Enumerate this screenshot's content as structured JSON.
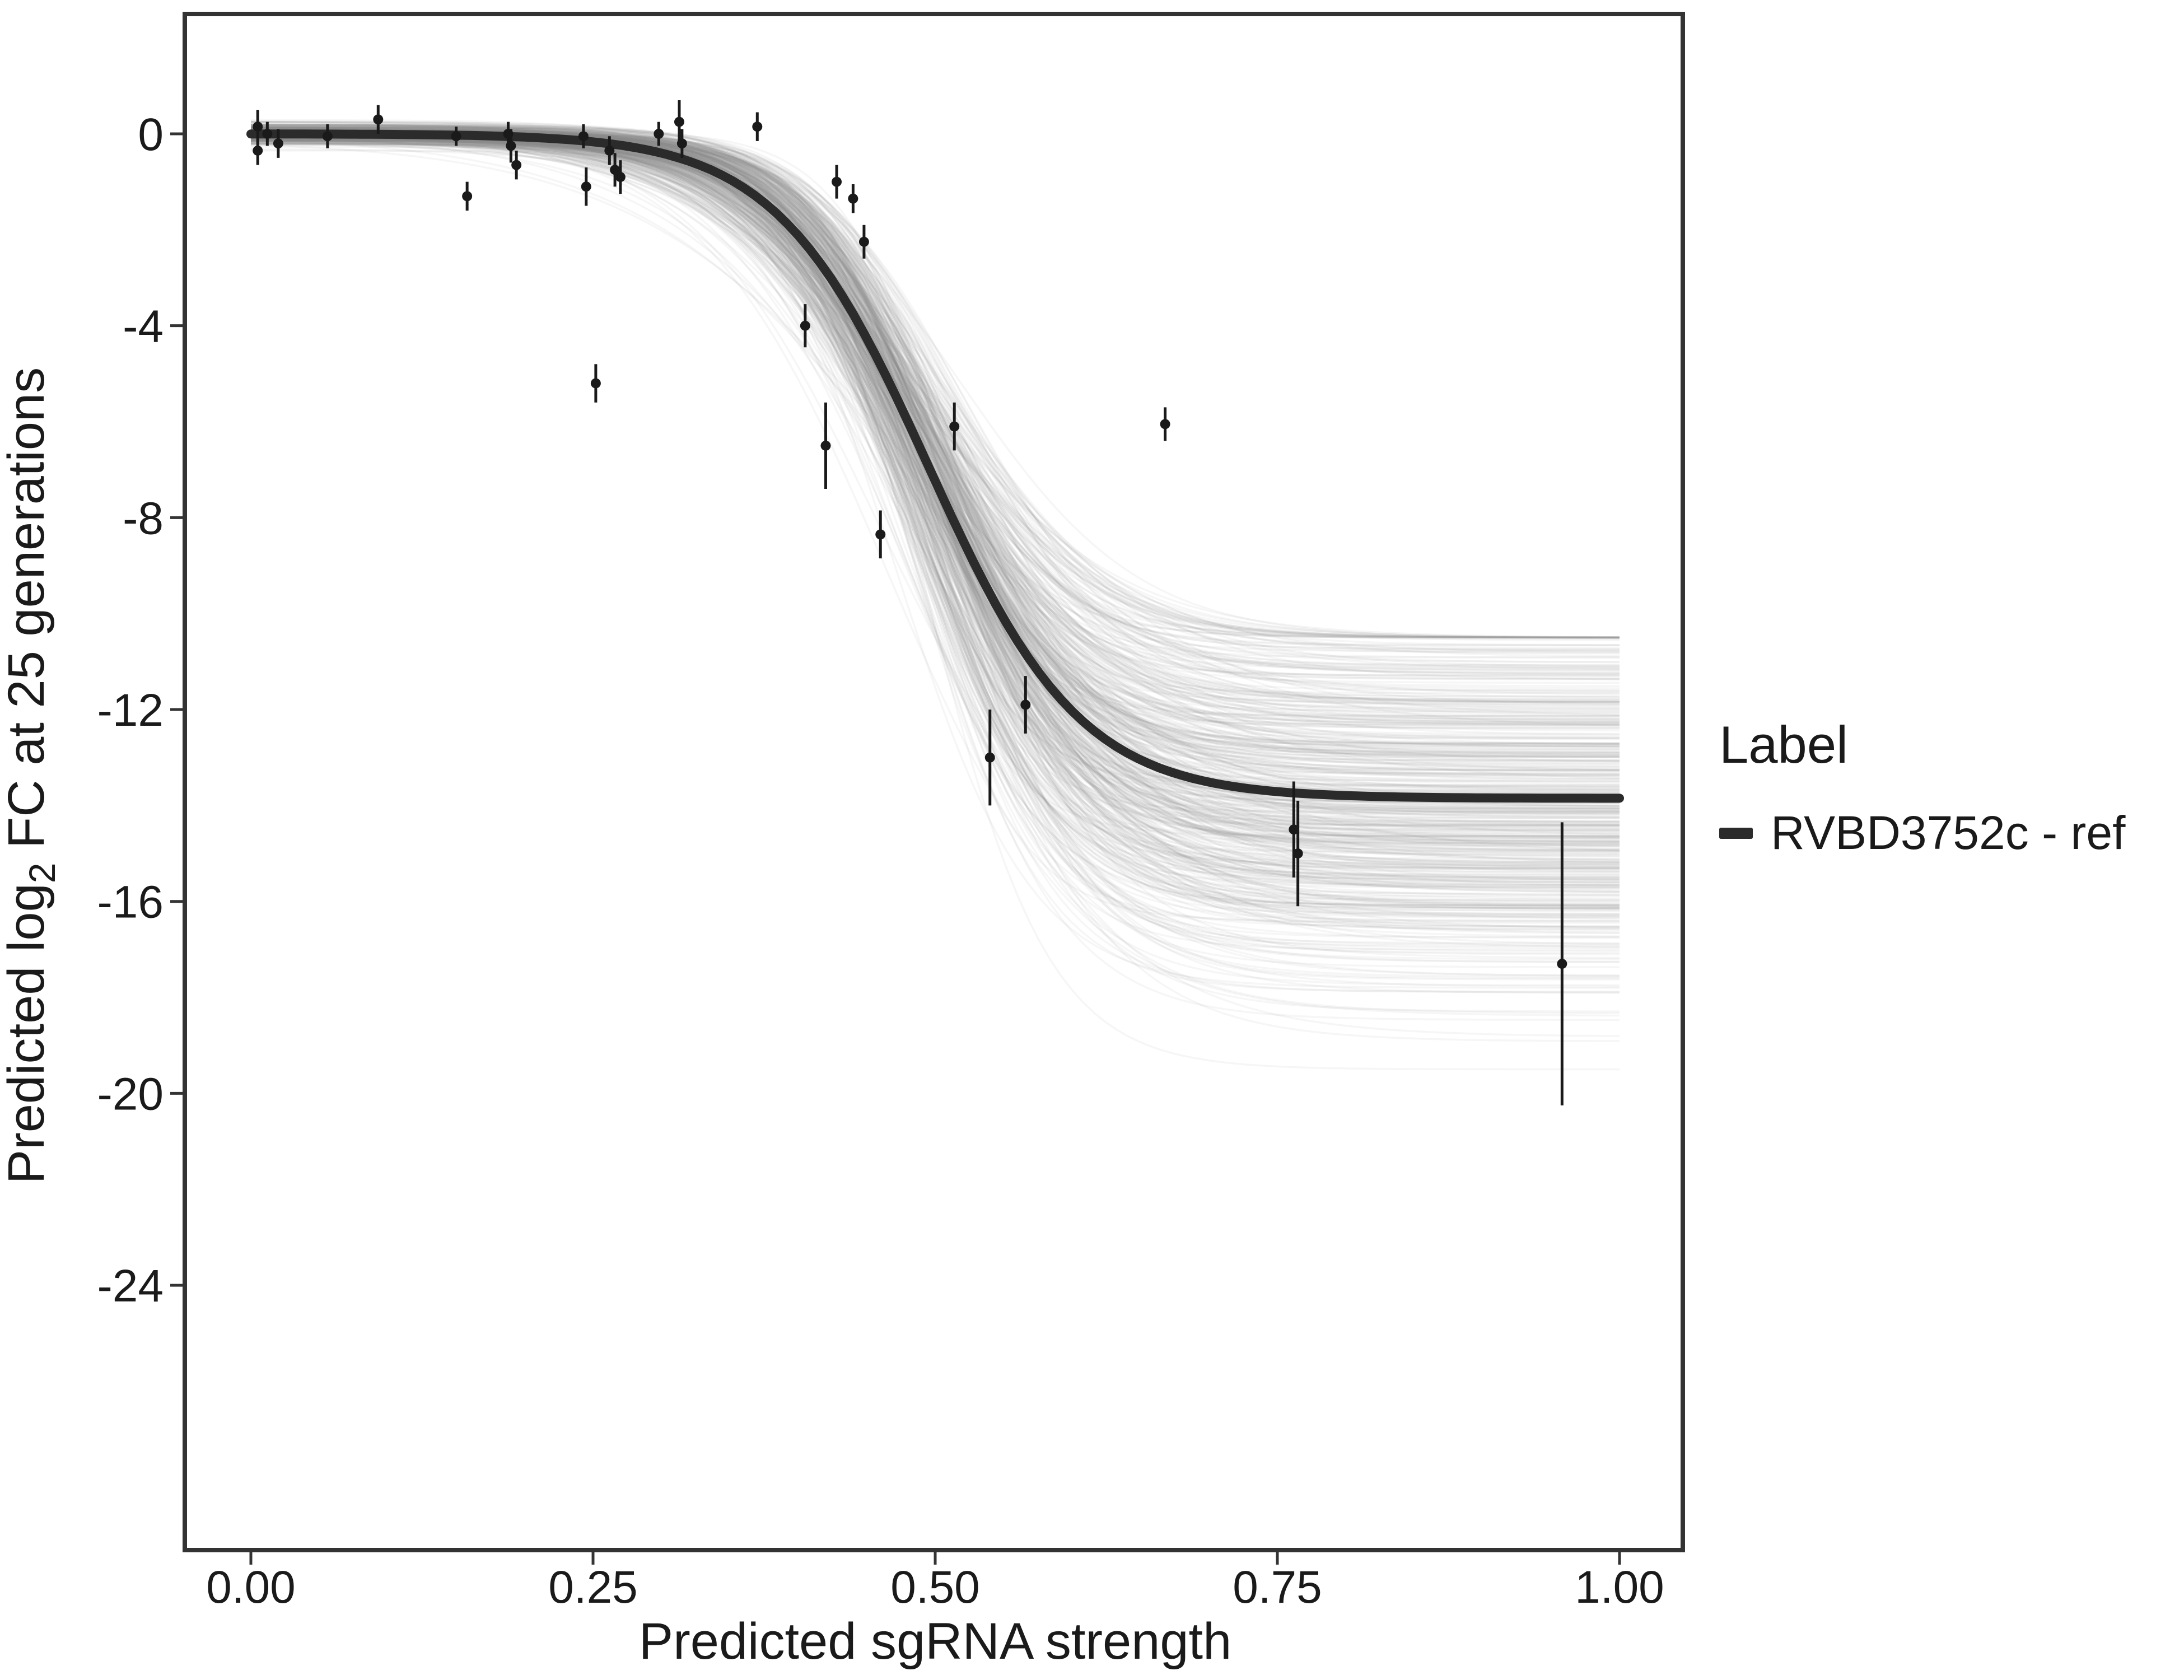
{
  "chart_data": {
    "type": "line",
    "title": "",
    "xlabel": "Predicted sgRNA strength",
    "ylabel": {
      "pre": "Predicted  log",
      "sub": "2",
      "post": " FC at 25 generations"
    },
    "xlim": [
      -0.048,
      1.046
    ],
    "ylim": [
      -29.5,
      2.5
    ],
    "grid": false,
    "xticks": [
      {
        "v": 0.0,
        "label": "0.00"
      },
      {
        "v": 0.25,
        "label": "0.25"
      },
      {
        "v": 0.5,
        "label": "0.50"
      },
      {
        "v": 0.75,
        "label": "0.75"
      },
      {
        "v": 1.0,
        "label": "1.00"
      }
    ],
    "yticks": [
      {
        "v": 0,
        "label": "0"
      },
      {
        "v": -4,
        "label": "-4"
      },
      {
        "v": -8,
        "label": "-8"
      },
      {
        "v": -12,
        "label": "-12"
      },
      {
        "v": -16,
        "label": "-16"
      },
      {
        "v": -20,
        "label": "-20"
      },
      {
        "v": -24,
        "label": "-24"
      }
    ],
    "legend": {
      "title": "Label",
      "position": "right",
      "entries": [
        {
          "label": "RVBD3752c - ref",
          "color": "#2b2b2b"
        }
      ]
    },
    "ref_curve": {
      "name": "RVBD3752c - ref",
      "model": "logistic",
      "top": 0,
      "bottom": -13.85,
      "x0": 0.495,
      "k": 18,
      "color": "#2b2b2b",
      "width": 16
    },
    "ensemble": {
      "description": "posterior sample sigmoid curves",
      "count": 500,
      "bottom_mean": -13.85,
      "bottom_sd": 2.0,
      "bottom_min": -19.5,
      "bottom_max": -10.5,
      "x0_mean": 0.495,
      "x0_sd": 0.013,
      "k_mean": 18,
      "k_sd": 3,
      "color": "#8c8c8c",
      "opacity": 0.08
    },
    "points": [
      {
        "x": 0.005,
        "y": 0.15,
        "e": 0.35
      },
      {
        "x": 0.005,
        "y": -0.35,
        "e": 0.3
      },
      {
        "x": 0.012,
        "y": 0.0,
        "e": 0.25
      },
      {
        "x": 0.02,
        "y": -0.2,
        "e": 0.3
      },
      {
        "x": 0.056,
        "y": -0.05,
        "e": 0.25
      },
      {
        "x": 0.093,
        "y": 0.3,
        "e": 0.3
      },
      {
        "x": 0.15,
        "y": -0.05,
        "e": 0.2
      },
      {
        "x": 0.158,
        "y": -1.3,
        "e": 0.3
      },
      {
        "x": 0.188,
        "y": 0.0,
        "e": 0.25
      },
      {
        "x": 0.19,
        "y": -0.25,
        "e": 0.35
      },
      {
        "x": 0.194,
        "y": -0.65,
        "e": 0.3
      },
      {
        "x": 0.243,
        "y": -0.05,
        "e": 0.25
      },
      {
        "x": 0.245,
        "y": -1.1,
        "e": 0.4
      },
      {
        "x": 0.252,
        "y": -5.2,
        "e": 0.4
      },
      {
        "x": 0.262,
        "y": -0.35,
        "e": 0.3
      },
      {
        "x": 0.266,
        "y": -0.75,
        "e": 0.35
      },
      {
        "x": 0.27,
        "y": -0.9,
        "e": 0.35
      },
      {
        "x": 0.298,
        "y": 0.0,
        "e": 0.25
      },
      {
        "x": 0.313,
        "y": 0.25,
        "e": 0.45
      },
      {
        "x": 0.315,
        "y": -0.2,
        "e": 0.3
      },
      {
        "x": 0.37,
        "y": 0.15,
        "e": 0.3
      },
      {
        "x": 0.405,
        "y": -4.0,
        "e": 0.45
      },
      {
        "x": 0.42,
        "y": -6.5,
        "e": 0.9
      },
      {
        "x": 0.428,
        "y": -1.0,
        "e": 0.35
      },
      {
        "x": 0.44,
        "y": -1.35,
        "e": 0.3
      },
      {
        "x": 0.448,
        "y": -2.25,
        "e": 0.35
      },
      {
        "x": 0.46,
        "y": -8.35,
        "e": 0.5
      },
      {
        "x": 0.514,
        "y": -6.1,
        "e": 0.5
      },
      {
        "x": 0.54,
        "y": -13.0,
        "e": 1.0
      },
      {
        "x": 0.566,
        "y": -11.9,
        "e": 0.6
      },
      {
        "x": 0.668,
        "y": -6.05,
        "e": 0.35
      },
      {
        "x": 0.762,
        "y": -14.5,
        "e": 1.0
      },
      {
        "x": 0.765,
        "y": -15.0,
        "e": 1.1
      },
      {
        "x": 0.958,
        "y": -17.3,
        "e": 2.95
      }
    ]
  }
}
